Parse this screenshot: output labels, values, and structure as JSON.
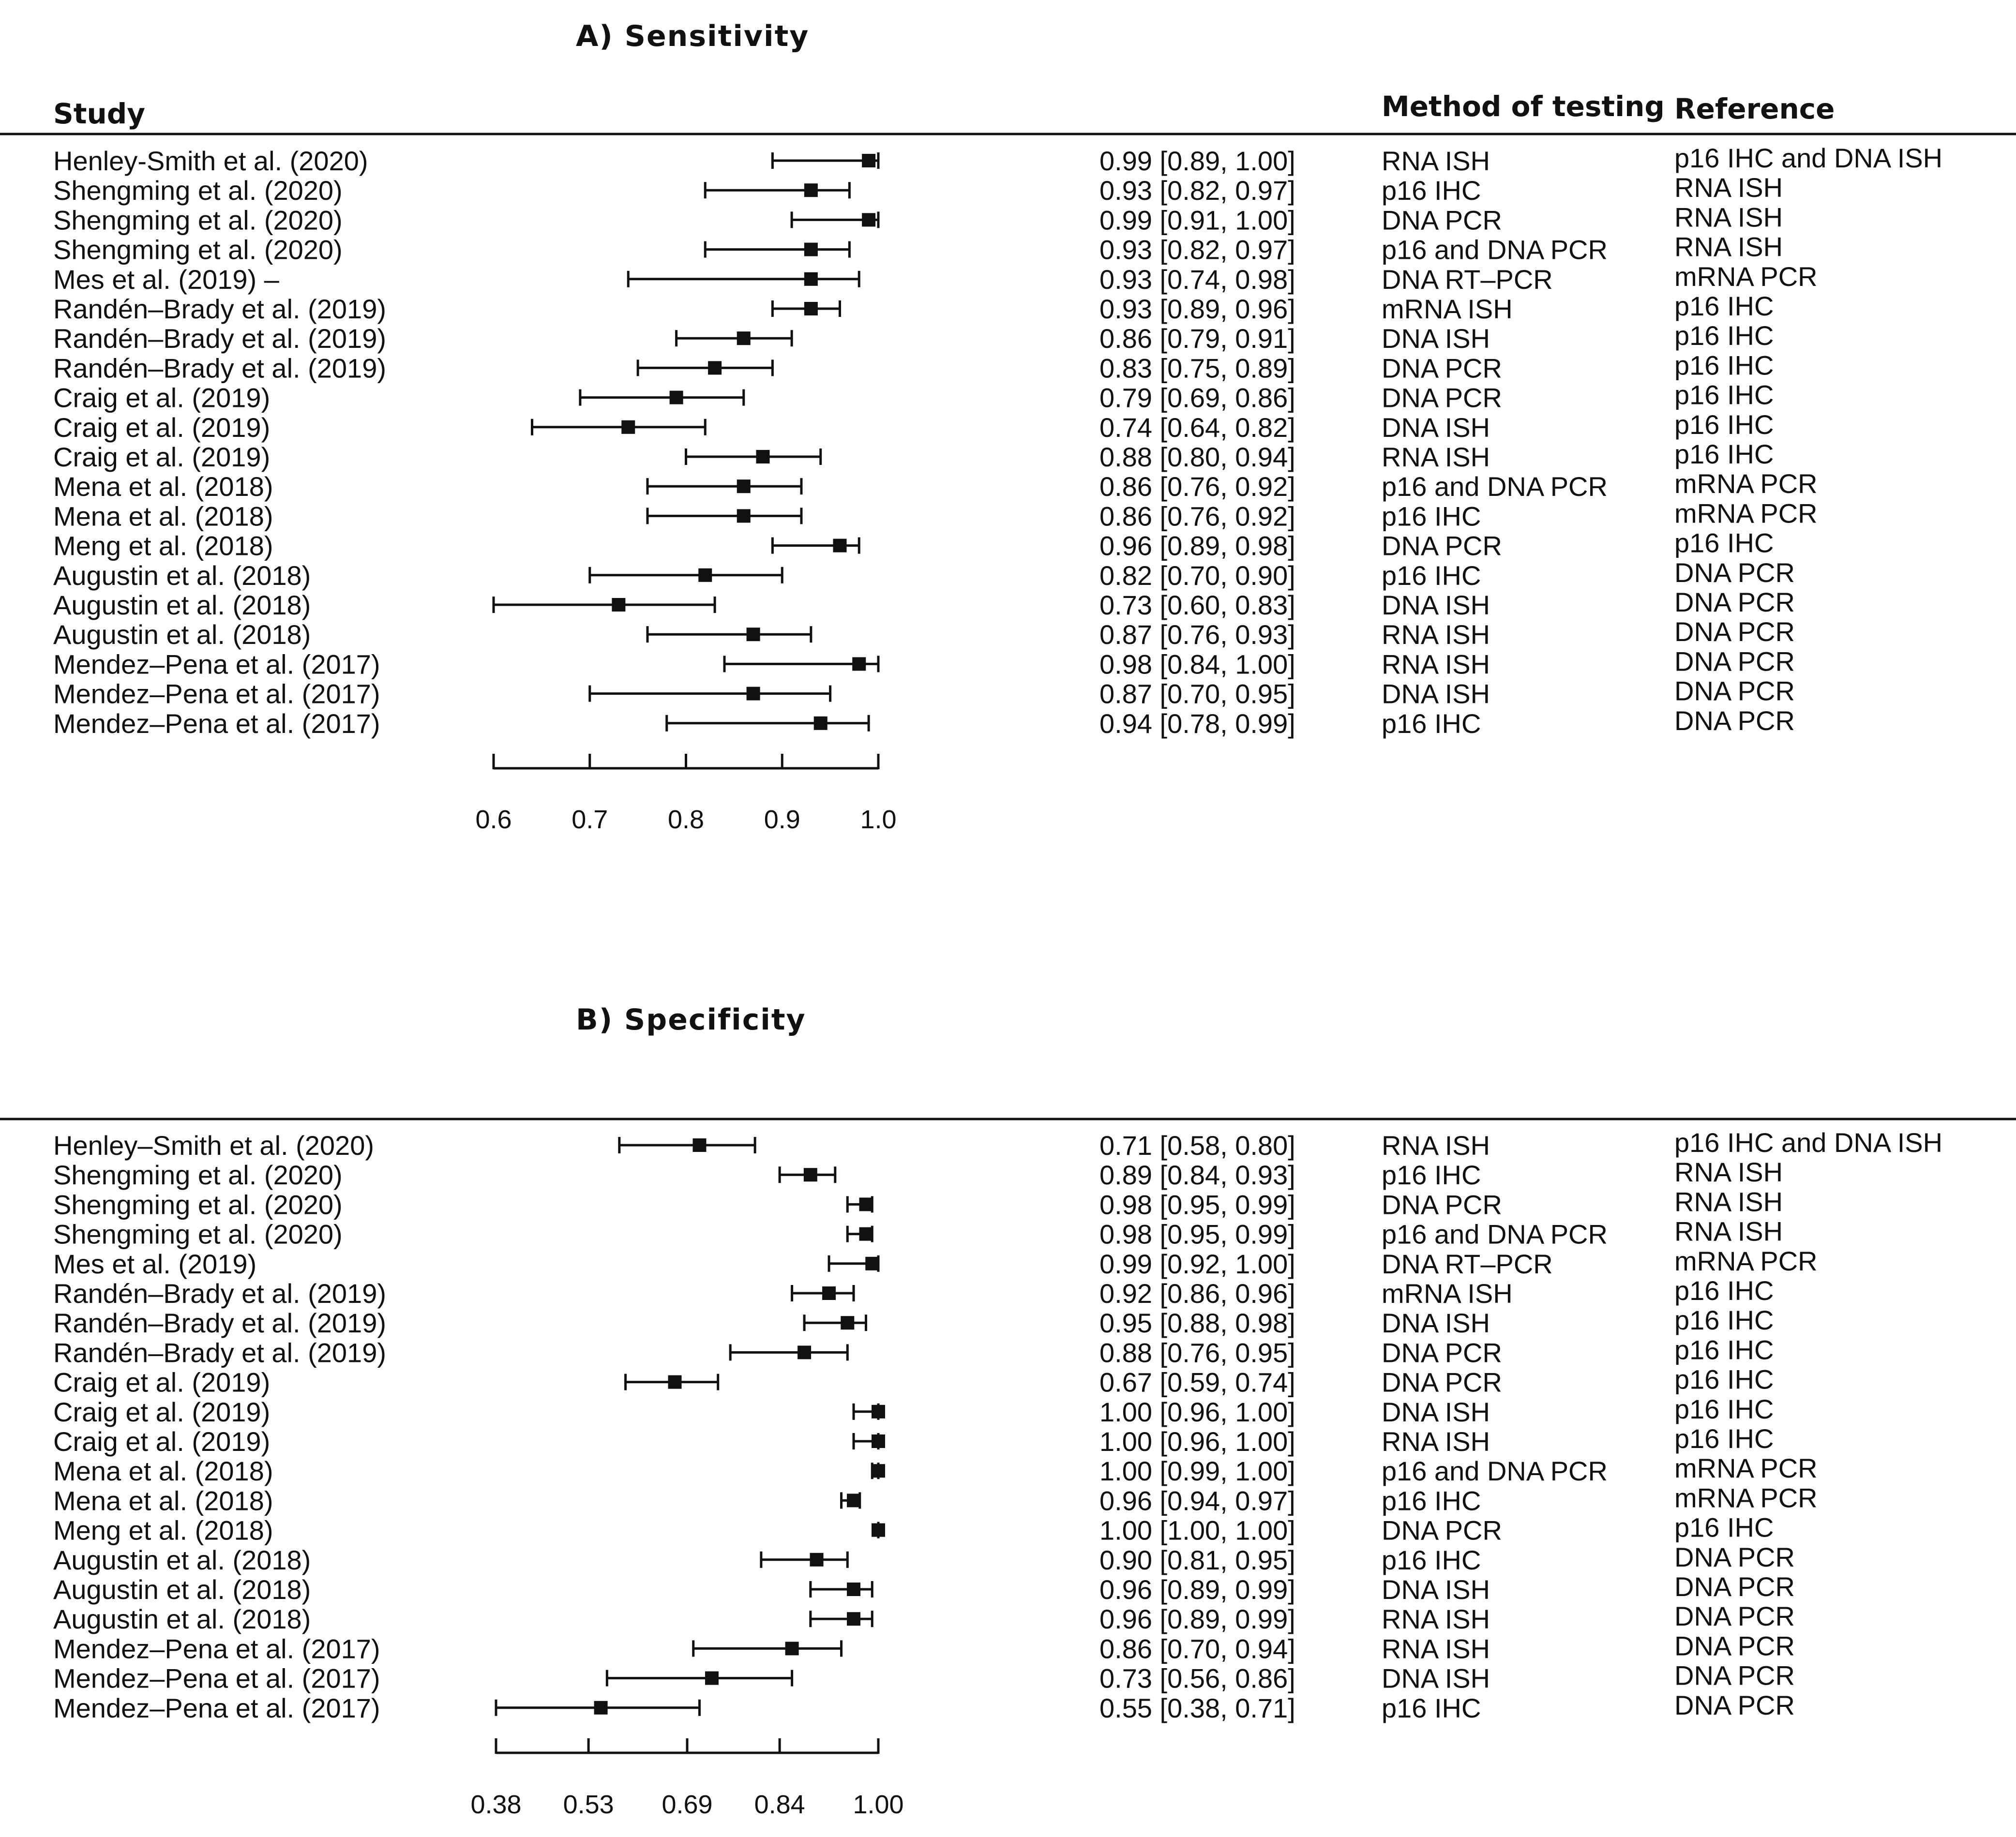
{
  "chart_data": [
    {
      "type": "forest",
      "title": "A) Sensitivity",
      "headers": {
        "study": "Study",
        "method": "Method of testing",
        "reference": "Reference"
      },
      "xlim": [
        0.6,
        1.0
      ],
      "ticks": [
        0.6,
        0.7,
        0.8,
        0.9,
        1.0
      ],
      "tick_labels": [
        "0.6",
        "0.7",
        "0.8",
        "0.9",
        "1.0"
      ],
      "rows": [
        {
          "study": "Henley-Smith et al. (2020)",
          "est": 0.99,
          "lo": 0.89,
          "hi": 1.0,
          "ci": "0.99 [0.89, 1.00]",
          "method": "RNA ISH",
          "reference": "p16 IHC and DNA ISH"
        },
        {
          "study": "Shengming et al. (2020)",
          "est": 0.93,
          "lo": 0.82,
          "hi": 0.97,
          "ci": "0.93 [0.82, 0.97]",
          "method": "p16  IHC",
          "reference": "RNA ISH"
        },
        {
          "study": "Shengming et al. (2020)",
          "est": 0.99,
          "lo": 0.91,
          "hi": 1.0,
          "ci": "0.99 [0.91, 1.00]",
          "method": "DNA PCR",
          "reference": "RNA ISH"
        },
        {
          "study": "Shengming et al. (2020)",
          "est": 0.93,
          "lo": 0.82,
          "hi": 0.97,
          "ci": "0.93 [0.82, 0.97]",
          "method": "p16 and DNA PCR",
          "reference": "RNA ISH"
        },
        {
          "study": "Mes et al. (2019) –",
          "est": 0.93,
          "lo": 0.74,
          "hi": 0.98,
          "ci": "0.93 [0.74, 0.98]",
          "method": "DNA RT–PCR",
          "reference": "mRNA PCR"
        },
        {
          "study": "Randén–Brady et al. (2019)",
          "est": 0.93,
          "lo": 0.89,
          "hi": 0.96,
          "ci": "0.93 [0.89, 0.96]",
          "method": "mRNA ISH",
          "reference": "p16 IHC"
        },
        {
          "study": "Randén–Brady et al. (2019)",
          "est": 0.86,
          "lo": 0.79,
          "hi": 0.91,
          "ci": "0.86 [0.79, 0.91]",
          "method": "DNA ISH",
          "reference": "p16 IHC"
        },
        {
          "study": "Randén–Brady et al. (2019)",
          "est": 0.83,
          "lo": 0.75,
          "hi": 0.89,
          "ci": "0.83 [0.75, 0.89]",
          "method": "DNA PCR",
          "reference": "p16 IHC"
        },
        {
          "study": "Craig et al. (2019)",
          "est": 0.79,
          "lo": 0.69,
          "hi": 0.86,
          "ci": "0.79 [0.69, 0.86]",
          "method": "DNA PCR",
          "reference": "p16 IHC"
        },
        {
          "study": "Craig et al. (2019)",
          "est": 0.74,
          "lo": 0.64,
          "hi": 0.82,
          "ci": "0.74 [0.64, 0.82]",
          "method": "DNA ISH",
          "reference": "p16 IHC"
        },
        {
          "study": "Craig et al. (2019)",
          "est": 0.88,
          "lo": 0.8,
          "hi": 0.94,
          "ci": "0.88 [0.80, 0.94]",
          "method": "RNA ISH",
          "reference": "p16 IHC"
        },
        {
          "study": "Mena et al. (2018)",
          "est": 0.86,
          "lo": 0.76,
          "hi": 0.92,
          "ci": "0.86 [0.76, 0.92]",
          "method": "p16 and DNA PCR",
          "reference": "mRNA PCR"
        },
        {
          "study": "Mena et al. (2018)",
          "est": 0.86,
          "lo": 0.76,
          "hi": 0.92,
          "ci": "0.86 [0.76, 0.92]",
          "method": "p16  IHC",
          "reference": "mRNA PCR"
        },
        {
          "study": "Meng et al. (2018)",
          "est": 0.96,
          "lo": 0.89,
          "hi": 0.98,
          "ci": "0.96 [0.89, 0.98]",
          "method": "DNA PCR",
          "reference": "p16 IHC"
        },
        {
          "study": "Augustin et al. (2018)",
          "est": 0.82,
          "lo": 0.7,
          "hi": 0.9,
          "ci": "0.82 [0.70, 0.90]",
          "method": "p16  IHC",
          "reference": "DNA PCR"
        },
        {
          "study": "Augustin et al. (2018)",
          "est": 0.73,
          "lo": 0.6,
          "hi": 0.83,
          "ci": "0.73 [0.60, 0.83]",
          "method": "DNA ISH",
          "reference": "DNA PCR"
        },
        {
          "study": "Augustin et al. (2018)",
          "est": 0.87,
          "lo": 0.76,
          "hi": 0.93,
          "ci": "0.87 [0.76, 0.93]",
          "method": "RNA ISH",
          "reference": "DNA PCR"
        },
        {
          "study": "Mendez–Pena et al. (2017)",
          "est": 0.98,
          "lo": 0.84,
          "hi": 1.0,
          "ci": "0.98 [0.84, 1.00]",
          "method": "RNA ISH",
          "reference": "DNA PCR"
        },
        {
          "study": "Mendez–Pena et al. (2017)",
          "est": 0.87,
          "lo": 0.7,
          "hi": 0.95,
          "ci": "0.87 [0.70, 0.95]",
          "method": "DNA ISH",
          "reference": "DNA PCR"
        },
        {
          "study": "Mendez–Pena et al. (2017)",
          "est": 0.94,
          "lo": 0.78,
          "hi": 0.99,
          "ci": "0.94 [0.78, 0.99]",
          "method": "p16  IHC",
          "reference": "DNA PCR"
        }
      ]
    },
    {
      "type": "forest",
      "title": "B) Specificity",
      "xlim": [
        0.38,
        1.0
      ],
      "ticks": [
        0.38,
        0.53,
        0.69,
        0.84,
        1.0
      ],
      "tick_labels": [
        "0.38",
        "0.53",
        "0.69",
        "0.84",
        "1.00"
      ],
      "rows": [
        {
          "study": "Henley–Smith et al. (2020)",
          "est": 0.71,
          "lo": 0.58,
          "hi": 0.8,
          "ci": "0.71 [0.58, 0.80]",
          "method": "RNA ISH",
          "reference": "p16 IHC and DNA ISH"
        },
        {
          "study": "Shengming et al. (2020)",
          "est": 0.89,
          "lo": 0.84,
          "hi": 0.93,
          "ci": "0.89 [0.84, 0.93]",
          "method": "p16  IHC",
          "reference": "RNA ISH"
        },
        {
          "study": "Shengming et al. (2020)",
          "est": 0.98,
          "lo": 0.95,
          "hi": 0.99,
          "ci": "0.98 [0.95, 0.99]",
          "method": "DNA PCR",
          "reference": "RNA ISH"
        },
        {
          "study": "Shengming et al. (2020)",
          "est": 0.98,
          "lo": 0.95,
          "hi": 0.99,
          "ci": "0.98 [0.95, 0.99]",
          "method": "p16 and DNA PCR",
          "reference": "RNA ISH"
        },
        {
          "study": "Mes et al. (2019)",
          "est": 0.99,
          "lo": 0.92,
          "hi": 1.0,
          "ci": "0.99 [0.92, 1.00]",
          "method": "DNA RT–PCR",
          "reference": "mRNA PCR"
        },
        {
          "study": "Randén–Brady et al. (2019)",
          "est": 0.92,
          "lo": 0.86,
          "hi": 0.96,
          "ci": "0.92 [0.86, 0.96]",
          "method": "mRNA ISH",
          "reference": "p16 IHC"
        },
        {
          "study": "Randén–Brady et al. (2019)",
          "est": 0.95,
          "lo": 0.88,
          "hi": 0.98,
          "ci": "0.95 [0.88, 0.98]",
          "method": "DNA ISH",
          "reference": "p16 IHC"
        },
        {
          "study": "Randén–Brady et al. (2019)",
          "est": 0.88,
          "lo": 0.76,
          "hi": 0.95,
          "ci": "0.88 [0.76, 0.95]",
          "method": "DNA PCR",
          "reference": "p16 IHC"
        },
        {
          "study": "Craig et al. (2019)",
          "est": 0.67,
          "lo": 0.59,
          "hi": 0.74,
          "ci": "0.67 [0.59, 0.74]",
          "method": "DNA PCR",
          "reference": "p16 IHC"
        },
        {
          "study": "Craig et al. (2019)",
          "est": 1.0,
          "lo": 0.96,
          "hi": 1.0,
          "ci": "1.00 [0.96, 1.00]",
          "method": "DNA ISH",
          "reference": "p16 IHC"
        },
        {
          "study": "Craig et al. (2019)",
          "est": 1.0,
          "lo": 0.96,
          "hi": 1.0,
          "ci": "1.00 [0.96, 1.00]",
          "method": "RNA ISH",
          "reference": "p16 IHC"
        },
        {
          "study": "Mena et al. (2018)",
          "est": 1.0,
          "lo": 0.99,
          "hi": 1.0,
          "ci": "1.00 [0.99, 1.00]",
          "method": "p16 and DNA PCR",
          "reference": "mRNA PCR"
        },
        {
          "study": "Mena et al. (2018)",
          "est": 0.96,
          "lo": 0.94,
          "hi": 0.97,
          "ci": "0.96 [0.94, 0.97]",
          "method": "p16  IHC",
          "reference": "mRNA PCR"
        },
        {
          "study": "Meng et al. (2018)",
          "est": 1.0,
          "lo": 1.0,
          "hi": 1.0,
          "ci": "1.00 [1.00, 1.00]",
          "method": "DNA PCR",
          "reference": "p16 IHC"
        },
        {
          "study": "Augustin et al. (2018)",
          "est": 0.9,
          "lo": 0.81,
          "hi": 0.95,
          "ci": "0.90 [0.81, 0.95]",
          "method": "p16  IHC",
          "reference": "DNA PCR"
        },
        {
          "study": "Augustin et al. (2018)",
          "est": 0.96,
          "lo": 0.89,
          "hi": 0.99,
          "ci": "0.96 [0.89, 0.99]",
          "method": "DNA ISH",
          "reference": "DNA PCR"
        },
        {
          "study": "Augustin et al. (2018)",
          "est": 0.96,
          "lo": 0.89,
          "hi": 0.99,
          "ci": "0.96 [0.89, 0.99]",
          "method": "RNA ISH",
          "reference": "DNA PCR"
        },
        {
          "study": "Mendez–Pena et al. (2017)",
          "est": 0.86,
          "lo": 0.7,
          "hi": 0.94,
          "ci": "0.86 [0.70, 0.94]",
          "method": "RNA ISH",
          "reference": "DNA PCR"
        },
        {
          "study": "Mendez–Pena et al. (2017)",
          "est": 0.73,
          "lo": 0.56,
          "hi": 0.86,
          "ci": "0.73 [0.56, 0.86]",
          "method": "DNA ISH",
          "reference": "DNA PCR"
        },
        {
          "study": "Mendez–Pena et al. (2017)",
          "est": 0.55,
          "lo": 0.38,
          "hi": 0.71,
          "ci": "0.55 [0.38, 0.71]",
          "method": "p16  IHC",
          "reference": "DNA PCR"
        }
      ]
    }
  ]
}
